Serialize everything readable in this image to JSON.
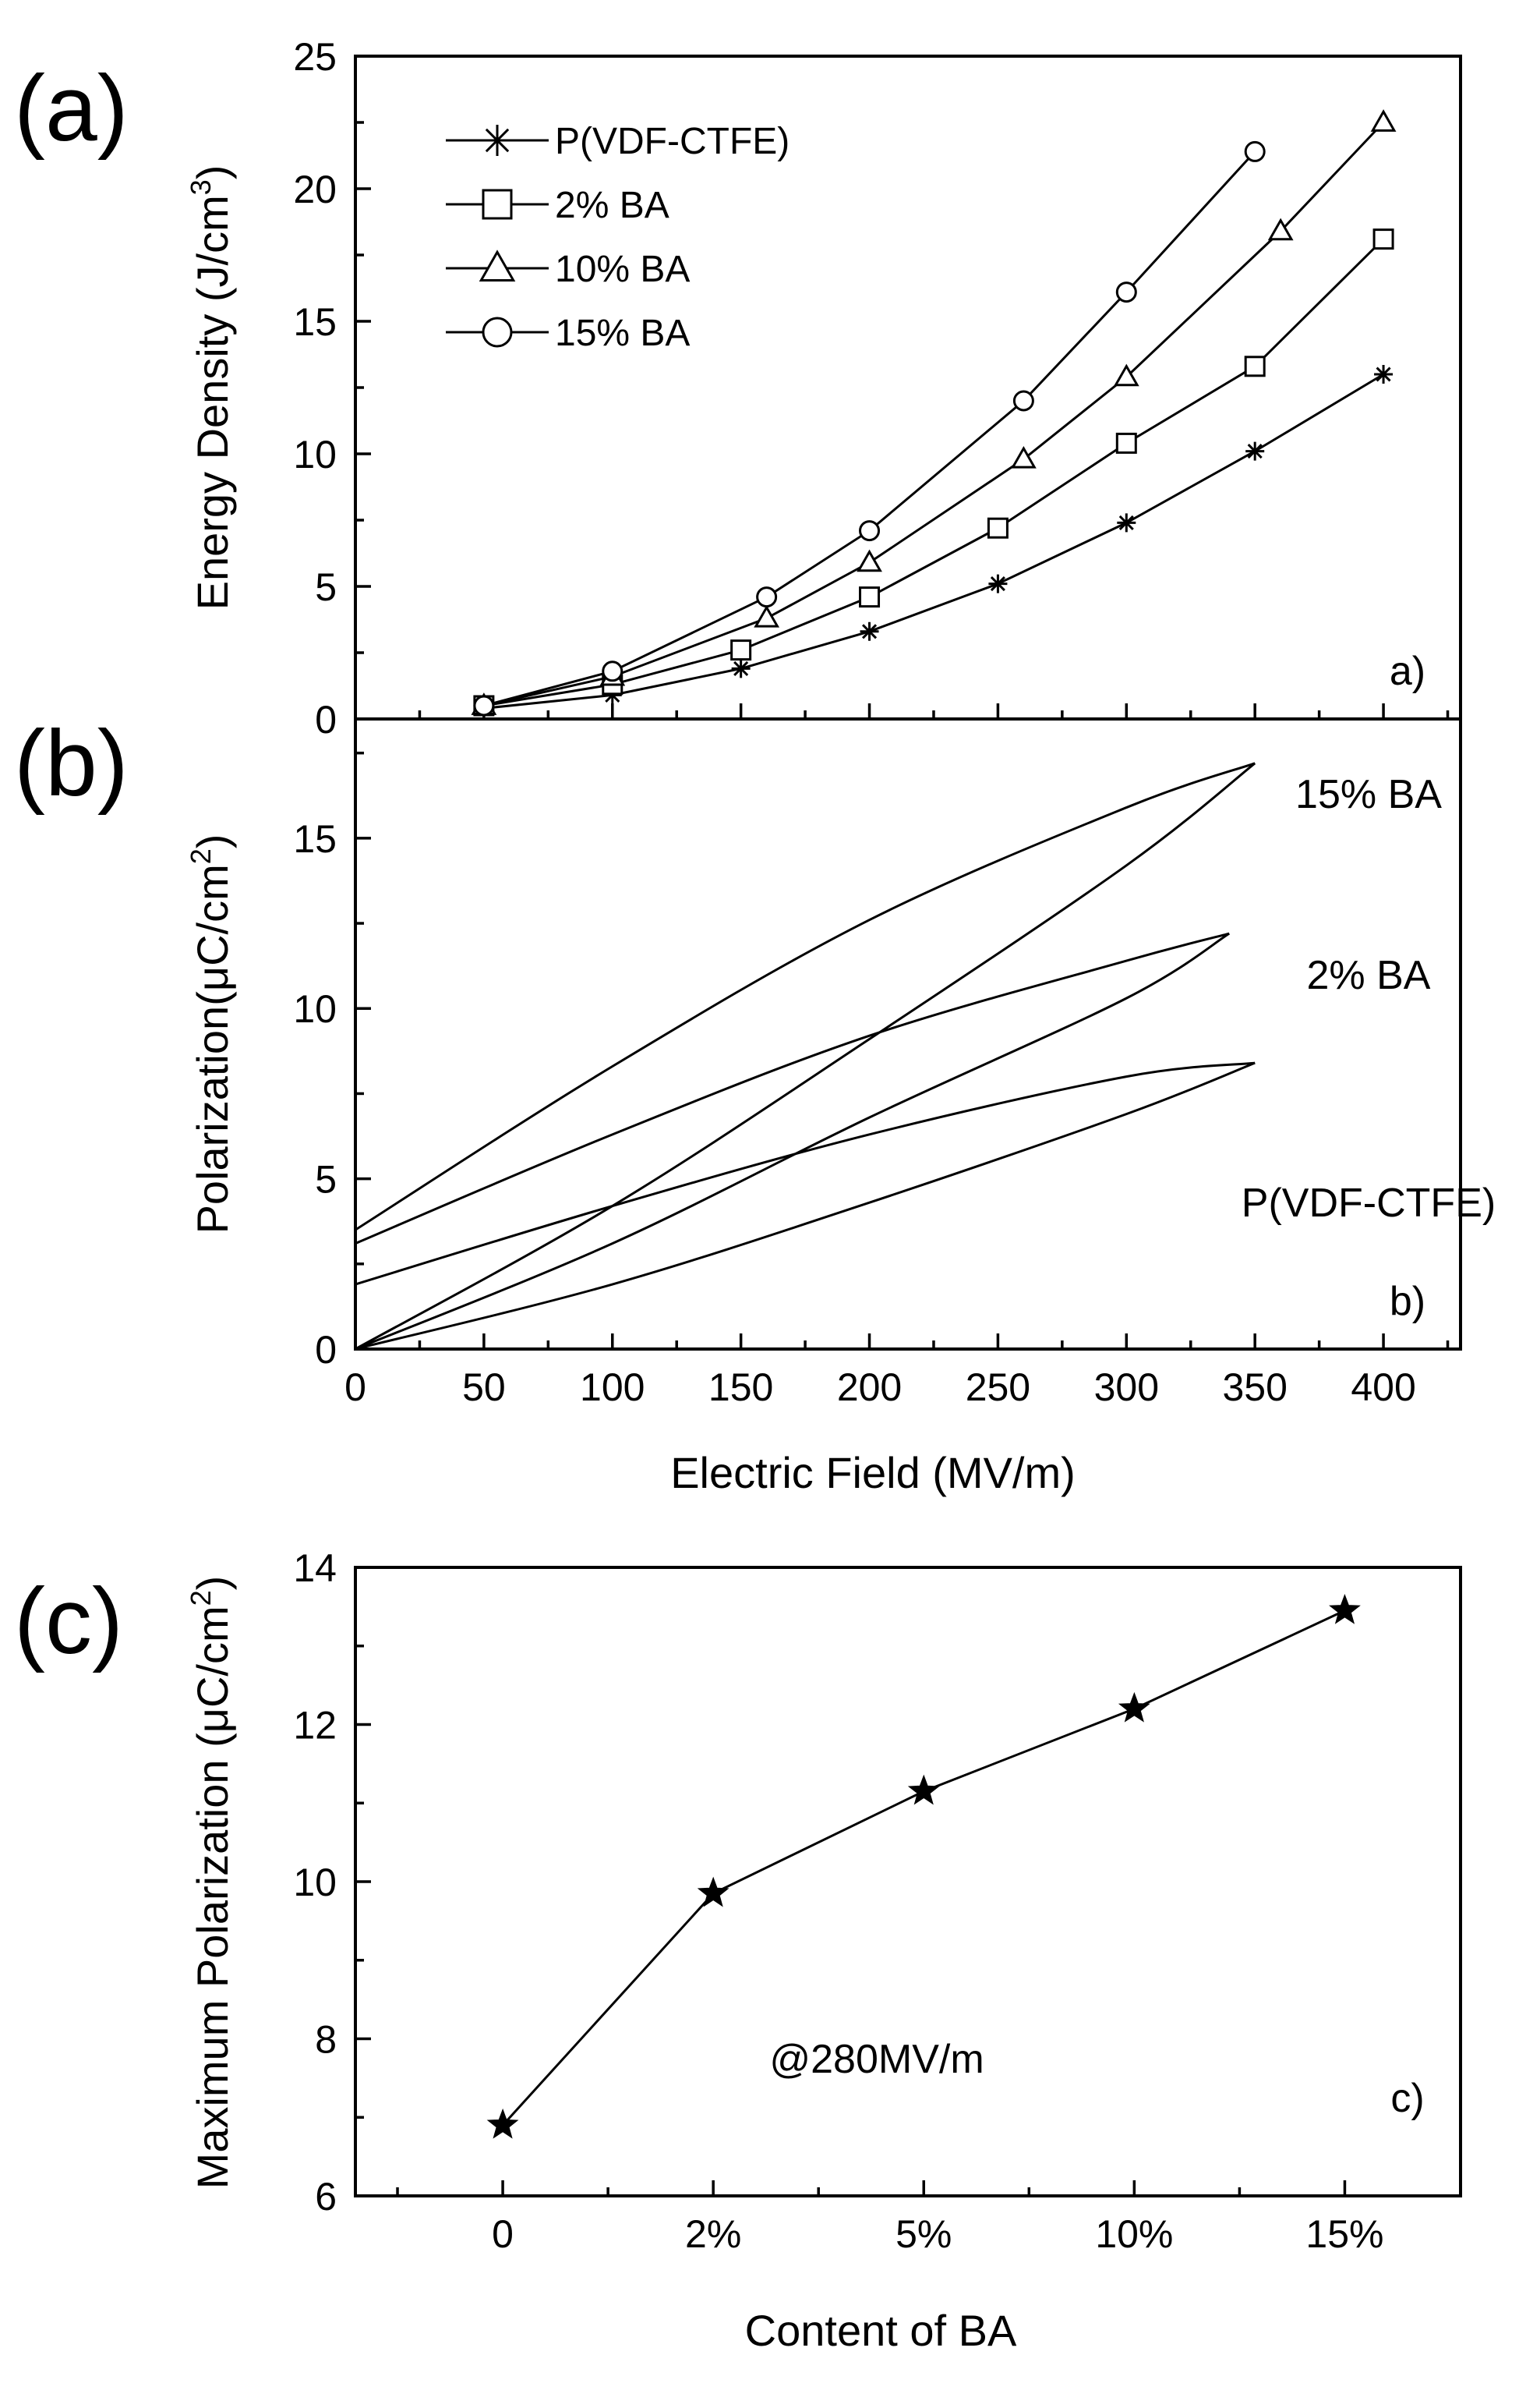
{
  "panel_letters": [
    "(a)",
    "(b)",
    "(c)"
  ],
  "chart_data": [
    {
      "id": "a",
      "type": "line",
      "xlim": [
        0,
        430
      ],
      "ylim": [
        0,
        25
      ],
      "x_ticks": [
        0,
        50,
        100,
        150,
        200,
        250,
        300,
        350,
        400
      ],
      "y_ticks": [
        0,
        5,
        10,
        15,
        20,
        25
      ],
      "ylabel": "Energy Density (J/cm",
      "ylabel_sup": "3",
      "ylabel_close": ")",
      "corner_label": "a)",
      "legend_position": "top-left",
      "series": [
        {
          "name": "P(VDF-CTFE)",
          "marker": "asterisk",
          "x": [
            50,
            100,
            150,
            200,
            250,
            300,
            350,
            400
          ],
          "y": [
            0.4,
            0.9,
            1.9,
            3.3,
            5.1,
            7.4,
            10.1,
            13.0
          ]
        },
        {
          "name": " 2% BA",
          "marker": "square",
          "x": [
            50,
            100,
            150,
            200,
            250,
            300,
            350,
            400
          ],
          "y": [
            0.5,
            1.3,
            2.6,
            4.6,
            7.2,
            10.4,
            13.3,
            18.1
          ]
        },
        {
          "name": "10% BA",
          "marker": "triangle",
          "x": [
            50,
            100,
            160,
            200,
            260,
            300,
            360,
            400
          ],
          "y": [
            0.5,
            1.6,
            3.8,
            5.9,
            9.8,
            12.9,
            18.4,
            22.5
          ]
        },
        {
          "name": "15% BA",
          "marker": "circle",
          "x": [
            50,
            100,
            160,
            200,
            260,
            300,
            350
          ],
          "y": [
            0.5,
            1.8,
            4.6,
            7.1,
            12.0,
            16.1,
            21.4
          ]
        }
      ]
    },
    {
      "id": "b",
      "type": "line",
      "xlim": [
        0,
        430
      ],
      "ylim": [
        0,
        18.5
      ],
      "x_ticks": [
        0,
        50,
        100,
        150,
        200,
        250,
        300,
        350,
        400
      ],
      "y_ticks": [
        0,
        5,
        10,
        15
      ],
      "xlabel": "Electric Field (MV/m)",
      "ylabel": "Polarization(μC/cm",
      "ylabel_sup": "2",
      "ylabel_close": ")",
      "corner_label": "b)",
      "series": [
        {
          "name": "15% BA",
          "charge_x": [
            0,
            100,
            200,
            300,
            350
          ],
          "charge_y": [
            0,
            4.2,
            9.1,
            14.2,
            17.2
          ],
          "discharge_x": [
            350,
            300,
            200,
            100,
            0
          ],
          "discharge_y": [
            17.2,
            15.9,
            12.6,
            8.3,
            3.5
          ]
        },
        {
          "name": "2% BA",
          "charge_x": [
            0,
            100,
            200,
            300,
            340
          ],
          "charge_y": [
            0,
            3.1,
            6.8,
            10.3,
            12.2
          ],
          "discharge_x": [
            340,
            300,
            200,
            100,
            0
          ],
          "discharge_y": [
            12.2,
            11.4,
            9.2,
            6.3,
            3.1
          ]
        },
        {
          "name": "P(VDF-CTFE)",
          "charge_x": [
            0,
            100,
            200,
            300,
            350
          ],
          "charge_y": [
            0,
            1.9,
            4.3,
            6.9,
            8.4
          ],
          "discharge_x": [
            350,
            300,
            200,
            100,
            0
          ],
          "discharge_y": [
            8.4,
            8.0,
            6.3,
            4.2,
            1.9
          ]
        }
      ]
    },
    {
      "id": "c",
      "type": "line",
      "categories": [
        "0",
        "2%",
        "5%",
        "10%",
        "15%"
      ],
      "values": [
        6.9,
        9.85,
        11.15,
        12.2,
        13.45
      ],
      "ylim": [
        6,
        14
      ],
      "y_ticks": [
        6,
        8,
        10,
        12,
        14
      ],
      "xlabel": "Content of BA",
      "ylabel": "Maximum Polarization (μC/cm",
      "ylabel_sup": "2",
      "ylabel_close": ")",
      "annotation": "@280MV/m",
      "corner_label": "c)",
      "marker": "star"
    }
  ]
}
